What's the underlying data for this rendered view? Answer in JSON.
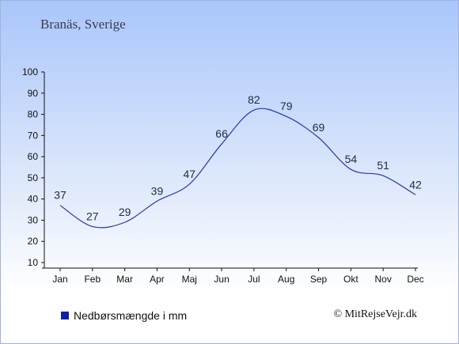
{
  "header": {
    "location": "Branäs, Sverige"
  },
  "legend": {
    "label": "Nedbørsmængde i mm",
    "color": "#0b1fa8"
  },
  "footer": {
    "credit": "© MitRejseVejr.dk"
  },
  "chart_data": {
    "type": "line",
    "title": "",
    "xlabel": "",
    "ylabel": "",
    "categories": [
      "Jan",
      "Feb",
      "Mar",
      "Apr",
      "Maj",
      "Jun",
      "Jul",
      "Aug",
      "Sep",
      "Okt",
      "Nov",
      "Dec"
    ],
    "series": [
      {
        "name": "Nedbørsmængde i mm",
        "values": [
          37,
          27,
          29,
          39,
          47,
          66,
          82,
          79,
          69,
          54,
          51,
          42
        ]
      }
    ],
    "ylim": [
      10,
      100
    ],
    "yticks": [
      10,
      20,
      30,
      40,
      50,
      60,
      70,
      80,
      90,
      100
    ],
    "line_color": "#2638a8",
    "grid": false,
    "legend_position": "bottom-left"
  }
}
